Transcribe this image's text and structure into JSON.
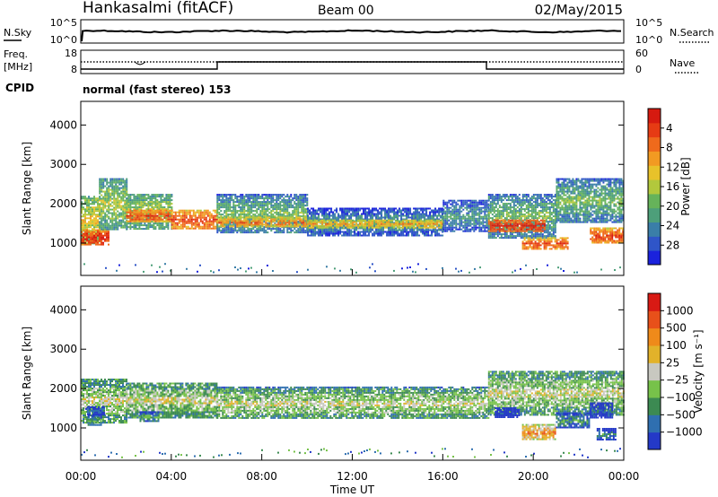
{
  "header": {
    "station": "Hankasalmi (fitACF)",
    "beam": "Beam 00",
    "date": "02/May/2015"
  },
  "noise_panel": {
    "left_label": "N.Sky",
    "right_label": "N.Search",
    "left_ticks": [
      "10^5",
      "10^0"
    ],
    "right_ticks": [
      "10^5",
      "10^0"
    ]
  },
  "freq_panel": {
    "left_label_1": "Freq.",
    "left_label_2": "[MHz]",
    "right_label": "Nave",
    "left_ticks": [
      "18",
      "8"
    ],
    "right_ticks": [
      "60",
      "0"
    ]
  },
  "cpid": {
    "label": "CPID",
    "text": "normal (fast stereo) 153"
  },
  "chart_data": [
    {
      "type": "heatmap",
      "name": "Power",
      "ylabel": "Slant Range [km]",
      "xlabel": "Time UT",
      "xlim": [
        0,
        24
      ],
      "ylim": [
        180,
        4600
      ],
      "y_ticks": [
        "1000",
        "2000",
        "3000",
        "4000"
      ],
      "x_ticks": [
        "00:00",
        "04:00",
        "08:00",
        "12:00",
        "16:00",
        "20:00",
        "00:00"
      ],
      "colorbar": {
        "label": "Power [dB]",
        "ticks": [
          "4",
          "8",
          "12",
          "16",
          "20",
          "24",
          "28"
        ],
        "colors": [
          "#1a22dc",
          "#2f55c8",
          "#3a7ea8",
          "#4d9f7a",
          "#66b35a",
          "#b2c83c",
          "#e8c22a",
          "#f29a22",
          "#ef6a1c",
          "#e63b14",
          "#d61a10"
        ]
      },
      "bands": [
        {
          "t": [
            0.0,
            0.8
          ],
          "center": 1600,
          "width": 1200,
          "level": 6
        },
        {
          "t": [
            0.0,
            1.2
          ],
          "center": 1150,
          "width": 400,
          "level": 10
        },
        {
          "t": [
            0.8,
            2.0
          ],
          "center": 2000,
          "width": 1300,
          "level": 5
        },
        {
          "t": [
            2.0,
            4.0
          ],
          "center": 1800,
          "width": 900,
          "level": 5
        },
        {
          "t": [
            2.0,
            4.0
          ],
          "center": 1700,
          "width": 300,
          "level": 9
        },
        {
          "t": [
            4.0,
            6.0
          ],
          "center": 1600,
          "width": 500,
          "level": 9
        },
        {
          "t": [
            6.0,
            10.0
          ],
          "center": 1750,
          "width": 1000,
          "level": 4
        },
        {
          "t": [
            6.0,
            10.0
          ],
          "center": 1550,
          "width": 250,
          "level": 8
        },
        {
          "t": [
            10.0,
            16.0
          ],
          "center": 1550,
          "width": 700,
          "level": 3
        },
        {
          "t": [
            10.0,
            16.0
          ],
          "center": 1500,
          "width": 200,
          "level": 7
        },
        {
          "t": [
            16.0,
            18.0
          ],
          "center": 1700,
          "width": 800,
          "level": 3
        },
        {
          "t": [
            18.0,
            21.0
          ],
          "center": 1700,
          "width": 1100,
          "level": 4
        },
        {
          "t": [
            18.0,
            20.5
          ],
          "center": 1450,
          "width": 300,
          "level": 10
        },
        {
          "t": [
            19.5,
            21.5
          ],
          "center": 1000,
          "width": 300,
          "level": 9
        },
        {
          "t": [
            21.0,
            24.0
          ],
          "center": 2100,
          "width": 1100,
          "level": 4
        },
        {
          "t": [
            22.5,
            24.0
          ],
          "center": 1200,
          "width": 400,
          "level": 9
        }
      ]
    },
    {
      "type": "heatmap",
      "name": "Velocity",
      "ylabel": "Slant Range [km]",
      "xlabel": "Time UT",
      "xlim": [
        0,
        24
      ],
      "ylim": [
        180,
        4600
      ],
      "y_ticks": [
        "1000",
        "2000",
        "3000",
        "4000"
      ],
      "x_ticks": [
        "00:00",
        "04:00",
        "08:00",
        "12:00",
        "16:00",
        "20:00",
        "00:00"
      ],
      "colorbar": {
        "label": "Velocity [m s⁻¹]",
        "ticks": [
          "1000",
          "500",
          "100",
          "25",
          "−25",
          "−100",
          "−500",
          "−1000"
        ],
        "colors": [
          "#2439c8",
          "#2f6fb0",
          "#3c8a52",
          "#77c24a",
          "#c8c8c0",
          "#e2b22a",
          "#ef8a1a",
          "#e8501a",
          "#d81a14"
        ]
      },
      "bands": [
        {
          "t": [
            0.0,
            2.0
          ],
          "center": 1700,
          "width": 1100,
          "level": 4
        },
        {
          "t": [
            2.0,
            6.0
          ],
          "center": 1700,
          "width": 900,
          "level": 4
        },
        {
          "t": [
            6.0,
            18.0
          ],
          "center": 1650,
          "width": 800,
          "level": 4
        },
        {
          "t": [
            18.0,
            24.0
          ],
          "center": 1900,
          "width": 1100,
          "level": 4
        },
        {
          "t": [
            0.3,
            0.9
          ],
          "center": 1200,
          "width": 250,
          "level": 3
        },
        {
          "t": [
            0.2,
            1.0
          ],
          "center": 1450,
          "width": 200,
          "level": 1
        },
        {
          "t": [
            2.6,
            3.4
          ],
          "center": 1300,
          "width": 250,
          "level": 3
        },
        {
          "t": [
            18.3,
            19.4
          ],
          "center": 1400,
          "width": 250,
          "level": 0
        },
        {
          "t": [
            19.5,
            21.0
          ],
          "center": 900,
          "width": 400,
          "level": 6
        },
        {
          "t": [
            21.0,
            22.5
          ],
          "center": 1200,
          "width": 400,
          "level": 2
        },
        {
          "t": [
            22.5,
            23.5
          ],
          "center": 1450,
          "width": 400,
          "level": 1
        },
        {
          "t": [
            22.8,
            23.6
          ],
          "center": 850,
          "width": 300,
          "level": 2
        }
      ]
    }
  ]
}
